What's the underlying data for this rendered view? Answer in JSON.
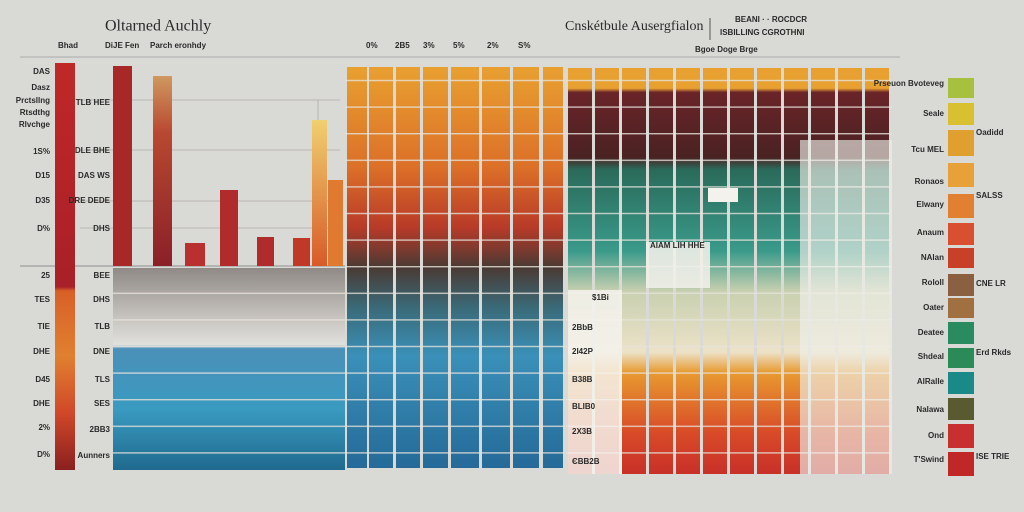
{
  "header": {
    "title": "Oltarned Auchly",
    "subtitle": "Cnskétbule Ausergfialon",
    "note_1": "BEANI · · ROCDCR",
    "note_2": "ISBILLING CGROTHNI",
    "note_3": "Bgoe Doge Brge"
  },
  "left_top": [
    "Bhad",
    "DiJE Fen",
    "Parch eronhdy"
  ],
  "top_labels": [
    "0%",
    "2B5",
    "3%",
    "5%",
    "2%",
    "S%"
  ],
  "left_labels": [
    "DAS",
    "Dasz",
    "Prctsllng",
    "Rtsdthg",
    "Rlvchge",
    "1S%",
    "D15",
    "D35",
    "D%",
    "25",
    "TES",
    "TIE",
    "DHE",
    "D45",
    "DHE",
    "2%",
    "D%"
  ],
  "inner_labels": [
    "TLB HEE",
    "DLE BHE",
    "DAS WS",
    "DRE DEDE",
    "DHS",
    "BEE",
    "DHS",
    "TLB",
    "DNE",
    "TLS",
    "SES",
    "2BB3",
    "Aunners"
  ],
  "panel_labels": [
    "$1Bi",
    "2BbB",
    "2I42P",
    "B38B",
    "BLIB0",
    "2X3B",
    "ЄBB2B"
  ],
  "popup": "AIAM LIH HHE",
  "legend": [
    "Prseuon Bvoteveg",
    "Seale",
    "Tcu MEL",
    "Ronaos",
    "Elwany",
    "Anaum",
    "NAlan",
    "Rololl",
    "Oater",
    "Deatee",
    "Shdeal",
    "AlRalle",
    "Nalawa",
    "Ond",
    "T'Swind"
  ],
  "side_notes": [
    "Oadidd",
    "SALSS",
    "CNE LR",
    "Erd Rkds",
    "ISE TRIE"
  ]
}
